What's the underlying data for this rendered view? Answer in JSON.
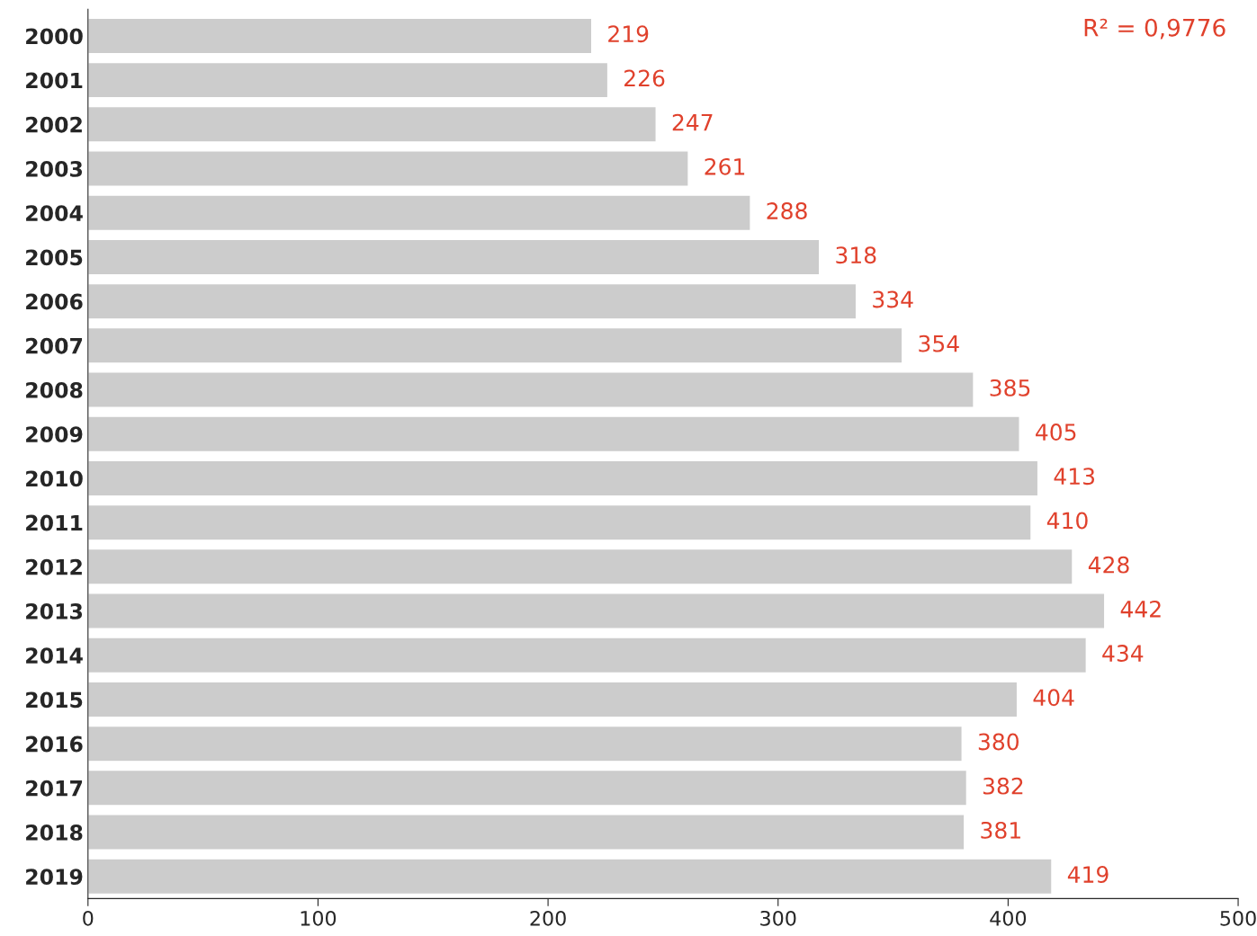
{
  "chart_data": {
    "type": "bar",
    "orientation": "horizontal",
    "categories": [
      "2000",
      "2001",
      "2002",
      "2003",
      "2004",
      "2005",
      "2006",
      "2007",
      "2008",
      "2009",
      "2010",
      "2011",
      "2012",
      "2013",
      "2014",
      "2015",
      "2016",
      "2017",
      "2018",
      "2019"
    ],
    "values": [
      219,
      226,
      247,
      261,
      288,
      318,
      334,
      354,
      385,
      405,
      413,
      410,
      428,
      442,
      434,
      404,
      380,
      382,
      381,
      419
    ],
    "color": "#cccccc",
    "xlim": [
      0,
      500
    ],
    "xticks": [
      0,
      100,
      200,
      300,
      400,
      500
    ],
    "data_labels": true,
    "grid": false,
    "legend": false,
    "annotations": [
      "R² = 0,9776"
    ]
  }
}
